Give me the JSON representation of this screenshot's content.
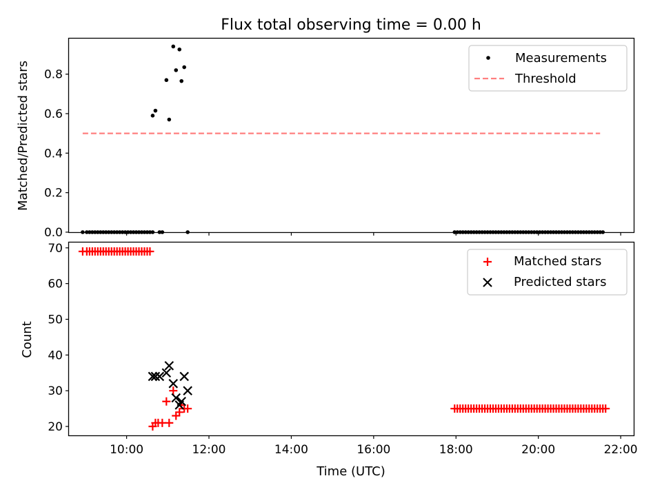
{
  "title": "Flux total observing time = 0.00 h",
  "chart_data": [
    {
      "type": "scatter",
      "ylabel": "Matched/Predicted stars",
      "xlabel": "",
      "xlim": [
        "08:36",
        "22:20"
      ],
      "ylim": [
        0,
        0.98
      ],
      "yticks": [
        "0.0",
        "0.2",
        "0.4",
        "0.6",
        "0.8"
      ],
      "ytick_values": [
        0,
        0.2,
        0.4,
        0.6,
        0.8
      ],
      "grid": false,
      "legend_position": "top-right",
      "series": [
        {
          "name": "Measurements",
          "marker": "dot",
          "color": "#000000",
          "x": [
            "08:56",
            "09:02",
            "09:06",
            "09:10",
            "09:14",
            "09:18",
            "09:22",
            "09:26",
            "09:30",
            "09:34",
            "09:38",
            "09:42",
            "09:46",
            "09:50",
            "09:54",
            "09:58",
            "10:02",
            "10:06",
            "10:10",
            "10:14",
            "10:18",
            "10:22",
            "10:26",
            "10:30",
            "10:34",
            "10:38",
            "10:48",
            "10:52",
            "10:38",
            "10:42",
            "10:58",
            "11:02",
            "11:08",
            "11:12",
            "11:17",
            "11:20",
            "11:24",
            "11:29",
            "17:58",
            "18:02",
            "18:06",
            "18:10",
            "18:14",
            "18:18",
            "18:22",
            "18:26",
            "18:30",
            "18:34",
            "18:38",
            "18:42",
            "18:46",
            "18:50",
            "18:54",
            "18:58",
            "19:02",
            "19:06",
            "19:10",
            "19:14",
            "19:18",
            "19:22",
            "19:26",
            "19:30",
            "19:34",
            "19:38",
            "19:42",
            "19:46",
            "19:50",
            "19:54",
            "19:58",
            "20:02",
            "20:06",
            "20:10",
            "20:14",
            "20:18",
            "20:22",
            "20:26",
            "20:30",
            "20:34",
            "20:38",
            "20:42",
            "20:46",
            "20:50",
            "20:54",
            "20:58",
            "21:02",
            "21:06",
            "21:10",
            "21:14",
            "21:18",
            "21:22",
            "21:26",
            "21:30",
            "21:34"
          ],
          "y": [
            0,
            0,
            0,
            0,
            0,
            0,
            0,
            0,
            0,
            0,
            0,
            0,
            0,
            0,
            0,
            0,
            0,
            0,
            0,
            0,
            0,
            0,
            0,
            0,
            0,
            0,
            0,
            0,
            0.59,
            0.615,
            0.77,
            0.57,
            0.94,
            0.82,
            0.925,
            0.765,
            0.835,
            0,
            0,
            0,
            0,
            0,
            0,
            0,
            0,
            0,
            0,
            0,
            0,
            0,
            0,
            0,
            0,
            0,
            0,
            0,
            0,
            0,
            0,
            0,
            0,
            0,
            0,
            0,
            0,
            0,
            0,
            0,
            0,
            0,
            0,
            0,
            0,
            0,
            0,
            0,
            0,
            0,
            0,
            0,
            0,
            0,
            0,
            0,
            0,
            0,
            0,
            0,
            0,
            0,
            0,
            0,
            0
          ]
        },
        {
          "name": "Threshold",
          "type": "line",
          "style": "dashed",
          "color": "#ff7f7f",
          "x": [
            "08:56",
            "21:30"
          ],
          "y": [
            0.5,
            0.5
          ]
        }
      ]
    },
    {
      "type": "scatter",
      "ylabel": "Count",
      "xlabel": "Time (UTC)",
      "xlim": [
        "08:36",
        "22:20"
      ],
      "ylim": [
        17.5,
        71.5
      ],
      "yticks": [
        "20",
        "30",
        "40",
        "50",
        "60",
        "70"
      ],
      "ytick_values": [
        20,
        30,
        40,
        50,
        60,
        70
      ],
      "xticks": [
        "10:00",
        "12:00",
        "14:00",
        "16:00",
        "18:00",
        "20:00",
        "22:00"
      ],
      "grid": false,
      "legend_position": "top-right",
      "series": [
        {
          "name": "Matched stars",
          "marker": "plus",
          "color": "#ff0000",
          "x": [
            "08:56",
            "09:02",
            "09:06",
            "09:10",
            "09:14",
            "09:18",
            "09:22",
            "09:26",
            "09:30",
            "09:34",
            "09:38",
            "09:42",
            "09:46",
            "09:50",
            "09:54",
            "09:58",
            "10:02",
            "10:06",
            "10:10",
            "10:14",
            "10:18",
            "10:22",
            "10:26",
            "10:30",
            "10:34",
            "10:38",
            "10:42",
            "10:46",
            "10:52",
            "10:58",
            "11:02",
            "11:08",
            "11:12",
            "11:17",
            "11:20",
            "11:24",
            "11:29",
            "17:58",
            "18:02",
            "18:06",
            "18:10",
            "18:14",
            "18:18",
            "18:22",
            "18:26",
            "18:30",
            "18:34",
            "18:38",
            "18:42",
            "18:46",
            "18:50",
            "18:54",
            "18:58",
            "19:02",
            "19:06",
            "19:10",
            "19:14",
            "19:18",
            "19:22",
            "19:26",
            "19:30",
            "19:34",
            "19:38",
            "19:42",
            "19:46",
            "19:50",
            "19:54",
            "19:58",
            "20:02",
            "20:06",
            "20:10",
            "20:14",
            "20:18",
            "20:22",
            "20:26",
            "20:30",
            "20:34",
            "20:38",
            "20:42",
            "20:46",
            "20:50",
            "20:54",
            "20:58",
            "21:02",
            "21:06",
            "21:10",
            "21:14",
            "21:18",
            "21:22",
            "21:26",
            "21:30",
            "21:34",
            "21:38"
          ],
          "y": [
            69,
            69,
            69,
            69,
            69,
            69,
            69,
            69,
            69,
            69,
            69,
            69,
            69,
            69,
            69,
            69,
            69,
            69,
            69,
            69,
            69,
            69,
            69,
            69,
            69,
            20,
            21,
            21,
            21,
            27,
            21,
            30,
            23,
            24,
            26,
            25,
            25,
            25,
            25,
            25,
            25,
            25,
            25,
            25,
            25,
            25,
            25,
            25,
            25,
            25,
            25,
            25,
            25,
            25,
            25,
            25,
            25,
            25,
            25,
            25,
            25,
            25,
            25,
            25,
            25,
            25,
            25,
            25,
            25,
            25,
            25,
            25,
            25,
            25,
            25,
            25,
            25,
            25,
            25,
            25,
            25,
            25,
            25,
            25,
            25,
            25,
            25,
            25,
            25,
            25,
            25,
            25,
            25
          ]
        },
        {
          "name": "Predicted stars",
          "marker": "x",
          "color": "#000000",
          "x": [
            "10:38",
            "10:42",
            "10:48",
            "10:58",
            "11:02",
            "11:08",
            "11:12",
            "11:17",
            "11:20",
            "11:24",
            "11:29"
          ],
          "y": [
            34,
            34,
            34,
            35,
            37,
            32,
            28,
            26,
            27,
            34,
            30
          ]
        }
      ]
    }
  ]
}
